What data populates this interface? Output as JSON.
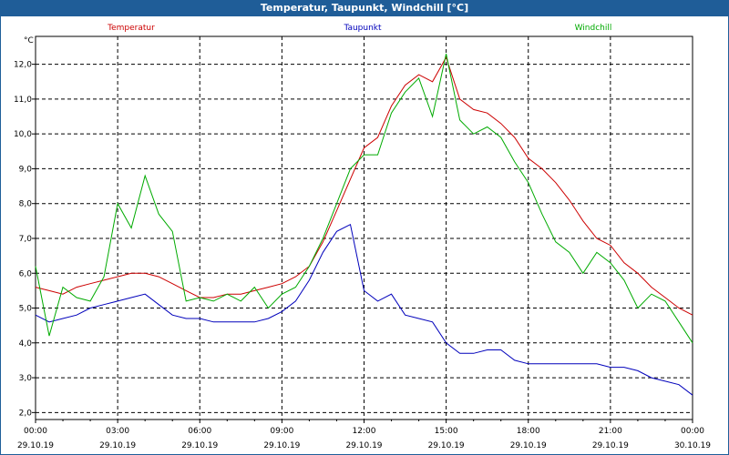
{
  "window": {
    "title": "Temperatur, Taupunkt, Windchill [°C]"
  },
  "chart_data": {
    "type": "line",
    "title": "Temperatur, Taupunkt, Windchill [°C]",
    "ylabel": "°C",
    "ylim": [
      1.8,
      12.8
    ],
    "y_ticks": [
      "2,0",
      "3,0",
      "4,0",
      "5,0",
      "6,0",
      "7,0",
      "8,0",
      "9,0",
      "10,0",
      "11,0",
      "12,0"
    ],
    "xlim": [
      0,
      24
    ],
    "x_ticks": [
      {
        "time": "00:00",
        "date": "29.10.19"
      },
      {
        "time": "03:00",
        "date": "29.10.19"
      },
      {
        "time": "06:00",
        "date": "29.10.19"
      },
      {
        "time": "09:00",
        "date": "29.10.19"
      },
      {
        "time": "12:00",
        "date": "29.10.19"
      },
      {
        "time": "15:00",
        "date": "29.10.19"
      },
      {
        "time": "18:00",
        "date": "29.10.19"
      },
      {
        "time": "21:00",
        "date": "29.10.19"
      },
      {
        "time": "00:00",
        "date": "30.10.19"
      }
    ],
    "grid": true,
    "legend_position": "top",
    "series": [
      {
        "name": "Temperatur",
        "color": "#cc0000",
        "x": [
          0,
          0.5,
          1,
          1.5,
          2,
          2.5,
          3,
          3.5,
          4,
          4.5,
          5,
          5.5,
          6,
          6.5,
          7,
          7.5,
          8,
          8.5,
          9,
          9.5,
          10,
          10.5,
          11,
          11.5,
          12,
          12.5,
          13,
          13.5,
          14,
          14.5,
          15,
          15.5,
          16,
          16.5,
          17,
          17.5,
          18,
          18.5,
          19,
          19.5,
          20,
          20.5,
          21,
          21.5,
          22,
          22.5,
          23,
          23.5,
          24
        ],
        "y": [
          5.6,
          5.5,
          5.4,
          5.6,
          5.7,
          5.8,
          5.9,
          6.0,
          6.0,
          5.9,
          5.7,
          5.5,
          5.3,
          5.3,
          5.4,
          5.4,
          5.5,
          5.6,
          5.7,
          5.9,
          6.2,
          6.9,
          7.8,
          8.7,
          9.6,
          9.9,
          10.8,
          11.4,
          11.7,
          11.5,
          12.2,
          11.0,
          10.7,
          10.6,
          10.3,
          9.9,
          9.3,
          9.0,
          8.6,
          8.1,
          7.5,
          7.0,
          6.8,
          6.3,
          6.0,
          5.6,
          5.3,
          5.0,
          4.8
        ]
      },
      {
        "name": "Taupunkt",
        "color": "#0000bb",
        "x": [
          0,
          0.5,
          1,
          1.5,
          2,
          2.5,
          3,
          3.5,
          4,
          4.5,
          5,
          5.5,
          6,
          6.5,
          7,
          7.5,
          8,
          8.5,
          9,
          9.5,
          10,
          10.5,
          11,
          11.5,
          12,
          12.5,
          13,
          13.5,
          14,
          14.5,
          15,
          15.5,
          16,
          16.5,
          17,
          17.5,
          18,
          18.5,
          19,
          19.5,
          20,
          20.5,
          21,
          21.5,
          22,
          22.5,
          23,
          23.5,
          24
        ],
        "y": [
          4.8,
          4.6,
          4.7,
          4.8,
          5.0,
          5.1,
          5.2,
          5.3,
          5.4,
          5.1,
          4.8,
          4.7,
          4.7,
          4.6,
          4.6,
          4.6,
          4.6,
          4.7,
          4.9,
          5.2,
          5.8,
          6.6,
          7.2,
          7.4,
          5.5,
          5.2,
          5.4,
          4.8,
          4.7,
          4.6,
          4.0,
          3.7,
          3.7,
          3.8,
          3.8,
          3.5,
          3.4,
          3.4,
          3.4,
          3.4,
          3.4,
          3.4,
          3.3,
          3.3,
          3.2,
          3.0,
          2.9,
          2.8,
          2.5
        ]
      },
      {
        "name": "Windchill",
        "color": "#00aa00",
        "x": [
          0,
          0.5,
          1,
          1.5,
          2,
          2.5,
          3,
          3.5,
          4,
          4.5,
          5,
          5.5,
          6,
          6.5,
          7,
          7.5,
          8,
          8.5,
          9,
          9.5,
          10,
          10.5,
          11,
          11.5,
          12,
          12.5,
          13,
          13.5,
          14,
          14.5,
          15,
          15.5,
          16,
          16.5,
          17,
          17.5,
          18,
          18.5,
          19,
          19.5,
          20,
          20.5,
          21,
          21.5,
          22,
          22.5,
          23,
          23.5,
          24
        ],
        "y": [
          6.2,
          4.2,
          5.6,
          5.3,
          5.2,
          5.9,
          8.0,
          7.3,
          8.8,
          7.7,
          7.2,
          5.2,
          5.3,
          5.2,
          5.4,
          5.2,
          5.6,
          5.0,
          5.4,
          5.6,
          6.2,
          7.0,
          8.0,
          9.0,
          9.4,
          9.4,
          10.6,
          11.2,
          11.6,
          10.5,
          12.3,
          10.4,
          10.0,
          10.2,
          9.9,
          9.2,
          8.6,
          7.7,
          6.9,
          6.6,
          6.0,
          6.6,
          6.3,
          5.8,
          5.0,
          5.4,
          5.2,
          4.6,
          4.0
        ]
      }
    ]
  }
}
